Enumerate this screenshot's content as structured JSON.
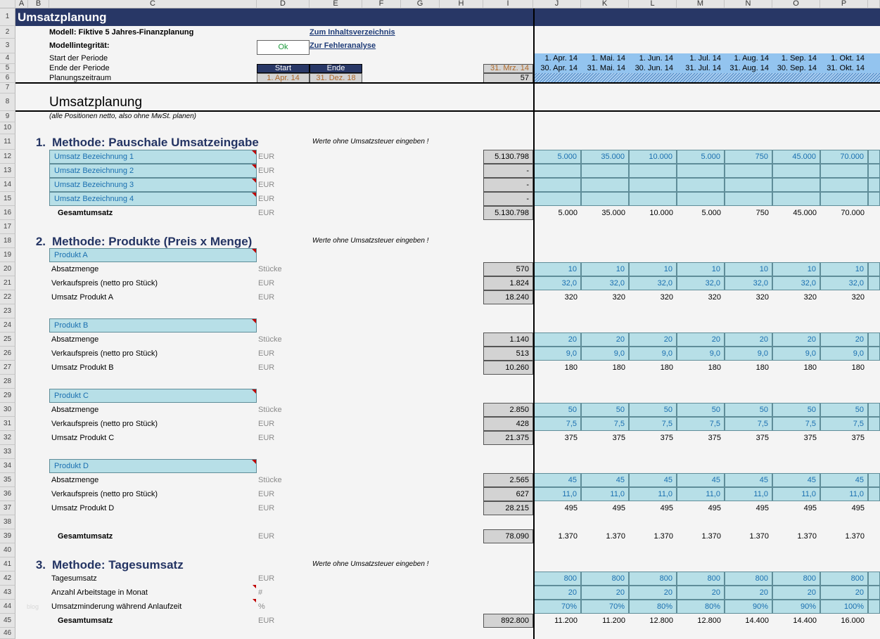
{
  "columns": [
    "A",
    "B",
    "C",
    "D",
    "E",
    "F",
    "G",
    "H",
    "I",
    "J",
    "K",
    "L",
    "M",
    "N",
    "O",
    "P"
  ],
  "header": {
    "title": "Umsatzplanung",
    "model_label": "Modell: Fiktive 5 Jahres-Finanzplanung",
    "link_toc": "Zum Inhaltsverzeichnis",
    "link_errors": "Zur Fehleranalyse",
    "integrity_label": "Modellintegrität:",
    "integrity_value": "Ok",
    "period_start_label": "Start der Periode",
    "period_end_label": "Ende der Periode",
    "planning_label": "Planungszeitraum",
    "start_header": "Start",
    "end_header": "Ende",
    "start_date": "1. Apr. 14",
    "end_date": "31. Dez. 18",
    "prev_end": "31. Mrz. 14",
    "period_count": "57"
  },
  "months": [
    {
      "start": "1. Apr. 14",
      "end": "30. Apr. 14"
    },
    {
      "start": "1. Mai. 14",
      "end": "31. Mai. 14"
    },
    {
      "start": "1. Jun. 14",
      "end": "30. Jun. 14"
    },
    {
      "start": "1. Jul. 14",
      "end": "31. Jul. 14"
    },
    {
      "start": "1. Aug. 14",
      "end": "31. Aug. 14"
    },
    {
      "start": "1. Sep. 14",
      "end": "30. Sep. 14"
    },
    {
      "start": "1. Okt. 14",
      "end": "31. Okt. 14"
    }
  ],
  "section": {
    "title": "Umsatzplanung",
    "note": "(alle Positionen netto, also ohne MwSt. planen)"
  },
  "method1": {
    "number": "1.",
    "title": "Methode: Pauschale Umsatzeingabe",
    "hint": "Werte ohne Umsatzsteuer eingeben !",
    "items": [
      {
        "label": "Umsatz Bezeichnung 1",
        "unit": "EUR",
        "total": "5.130.798",
        "values": [
          "5.000",
          "35.000",
          "10.000",
          "5.000",
          "750",
          "45.000",
          "70.000"
        ]
      },
      {
        "label": "Umsatz Bezeichnung 2",
        "unit": "EUR",
        "total": "-",
        "values": [
          "",
          "",
          "",
          "",
          "",
          "",
          ""
        ]
      },
      {
        "label": "Umsatz Bezeichnung 3",
        "unit": "EUR",
        "total": "-",
        "values": [
          "",
          "",
          "",
          "",
          "",
          "",
          ""
        ]
      },
      {
        "label": "Umsatz Bezeichnung 4",
        "unit": "EUR",
        "total": "-",
        "values": [
          "",
          "",
          "",
          "",
          "",
          "",
          ""
        ]
      }
    ],
    "sum": {
      "label": "Gesamtumsatz",
      "unit": "EUR",
      "total": "5.130.798",
      "values": [
        "5.000",
        "35.000",
        "10.000",
        "5.000",
        "750",
        "45.000",
        "70.000"
      ]
    }
  },
  "method2": {
    "number": "2.",
    "title": "Methode: Produkte (Preis x Menge)",
    "hint": "Werte ohne Umsatzsteuer eingeben !",
    "products": [
      {
        "name": "Produkt A",
        "rows": [
          {
            "label": "Absatzmenge",
            "unit": "Stücke",
            "total": "570",
            "values": [
              "10",
              "10",
              "10",
              "10",
              "10",
              "10",
              "10"
            ]
          },
          {
            "label": "Verkaufspreis (netto pro Stück)",
            "unit": "EUR",
            "total": "1.824",
            "values": [
              "32,0",
              "32,0",
              "32,0",
              "32,0",
              "32,0",
              "32,0",
              "32,0"
            ]
          },
          {
            "label": "Umsatz Produkt A",
            "unit": "EUR",
            "total": "18.240",
            "values": [
              "320",
              "320",
              "320",
              "320",
              "320",
              "320",
              "320"
            ]
          }
        ]
      },
      {
        "name": "Produkt B",
        "rows": [
          {
            "label": "Absatzmenge",
            "unit": "Stücke",
            "total": "1.140",
            "values": [
              "20",
              "20",
              "20",
              "20",
              "20",
              "20",
              "20"
            ]
          },
          {
            "label": "Verkaufspreis (netto pro Stück)",
            "unit": "EUR",
            "total": "513",
            "values": [
              "9,0",
              "9,0",
              "9,0",
              "9,0",
              "9,0",
              "9,0",
              "9,0"
            ]
          },
          {
            "label": "Umsatz Produkt B",
            "unit": "EUR",
            "total": "10.260",
            "values": [
              "180",
              "180",
              "180",
              "180",
              "180",
              "180",
              "180"
            ]
          }
        ]
      },
      {
        "name": "Produkt C",
        "rows": [
          {
            "label": "Absatzmenge",
            "unit": "Stücke",
            "total": "2.850",
            "values": [
              "50",
              "50",
              "50",
              "50",
              "50",
              "50",
              "50"
            ]
          },
          {
            "label": "Verkaufspreis (netto pro Stück)",
            "unit": "EUR",
            "total": "428",
            "values": [
              "7,5",
              "7,5",
              "7,5",
              "7,5",
              "7,5",
              "7,5",
              "7,5"
            ]
          },
          {
            "label": "Umsatz Produkt C",
            "unit": "EUR",
            "total": "21.375",
            "values": [
              "375",
              "375",
              "375",
              "375",
              "375",
              "375",
              "375"
            ]
          }
        ]
      },
      {
        "name": "Produkt D",
        "rows": [
          {
            "label": "Absatzmenge",
            "unit": "Stücke",
            "total": "2.565",
            "values": [
              "45",
              "45",
              "45",
              "45",
              "45",
              "45",
              "45"
            ]
          },
          {
            "label": "Verkaufspreis (netto pro Stück)",
            "unit": "EUR",
            "total": "627",
            "values": [
              "11,0",
              "11,0",
              "11,0",
              "11,0",
              "11,0",
              "11,0",
              "11,0"
            ]
          },
          {
            "label": "Umsatz Produkt D",
            "unit": "EUR",
            "total": "28.215",
            "values": [
              "495",
              "495",
              "495",
              "495",
              "495",
              "495",
              "495"
            ]
          }
        ]
      }
    ],
    "sum": {
      "label": "Gesamtumsatz",
      "unit": "EUR",
      "total": "78.090",
      "values": [
        "1.370",
        "1.370",
        "1.370",
        "1.370",
        "1.370",
        "1.370",
        "1.370"
      ]
    }
  },
  "method3": {
    "number": "3.",
    "title": "Methode: Tagesumsatz",
    "hint": "Werte ohne Umsatzsteuer eingeben !",
    "rows": [
      {
        "label": "Tagesumsatz",
        "unit": "EUR",
        "values": [
          "800",
          "800",
          "800",
          "800",
          "800",
          "800",
          "800"
        ]
      },
      {
        "label": "Anzahl Arbeitstage in Monat",
        "unit": "#",
        "values": [
          "20",
          "20",
          "20",
          "20",
          "20",
          "20",
          "20"
        ]
      },
      {
        "label": "Umsatzminderung während Anlaufzeit",
        "unit": "%",
        "values": [
          "70%",
          "70%",
          "80%",
          "80%",
          "90%",
          "90%",
          "100%"
        ]
      }
    ],
    "sum": {
      "label": "Gesamtumsatz",
      "unit": "EUR",
      "total": "892.800",
      "values": [
        "11.200",
        "11.200",
        "12.800",
        "12.800",
        "14.400",
        "14.400",
        "16.000"
      ]
    }
  },
  "watermark": "blog"
}
